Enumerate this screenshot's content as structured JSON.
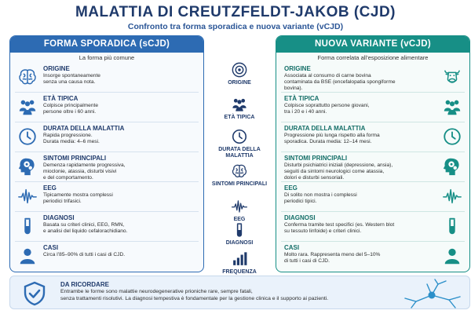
{
  "header": {
    "title": "MALATTIA DI CREUTZFELDT-JAKOB (CJD)",
    "subtitle": "Confronto tra forma sporadica e nuova variante (vCJD)"
  },
  "left": {
    "title": "FORMA SPORADICA (sCJD)",
    "subtitle": "La forma più comune",
    "rows": [
      {
        "label": "ORIGINE",
        "desc": "Insorge spontaneamente\nsenza una causa nota.",
        "icon": "brain-icon"
      },
      {
        "label": "ETÀ TIPICA",
        "desc": "Colpisce principalmente\npersone oltre i 60 anni.",
        "icon": "people-icon"
      },
      {
        "label": "DURATA DELLA MALATTIA",
        "desc": "Rapida progressione.\nDurata media: 4–6 mesi.",
        "icon": "clock-icon"
      },
      {
        "label": "SINTOMI PRINCIPALI",
        "desc": "Demenza rapidamente progressiva,\nmioclonie, atassia, disturbi visivi\ne del comportamento.",
        "icon": "head-gears-icon"
      },
      {
        "label": "EEG",
        "desc": "Tipicamente mostra complessi\nperiodici trifasici.",
        "icon": "eeg-wave-icon"
      },
      {
        "label": "DIAGNOSI",
        "desc": "Basata su criteri clinici, EEG, RMN,\ne analisi del liquido cefalorachidiano.",
        "icon": "test-tube-icon"
      },
      {
        "label": "CASI",
        "desc": "Circa l’85–90% di tutti i casi di CJD.",
        "icon": "person-icon"
      }
    ]
  },
  "right": {
    "title": "NUOVA VARIANTE (vCJD)",
    "subtitle": "Forma correlata all’esposizione alimentare",
    "rows": [
      {
        "label": "ORIGINE",
        "desc": "Associata al consumo di carne bovina\ncontaminata da BSE (encefalopatia spongiforme\nbovina).",
        "icon": "cow-icon"
      },
      {
        "label": "ETÀ TIPICA",
        "desc": "Colpisce soprattutto persone giovani,\ntra i 20 e i 40 anni.",
        "icon": "people-icon"
      },
      {
        "label": "DURATA DELLA MALATTIA",
        "desc": "Progressione più lunga rispetto alla forma\nsporadica. Durata media: 12–14 mesi.",
        "icon": "clock-icon"
      },
      {
        "label": "SINTOMI PRINCIPALI",
        "desc": "Disturbi psichiatrici iniziali (depressione, ansia),\nseguiti da sintomi neurologici come atassia,\ndolori e disturbi sensoriali.",
        "icon": "head-gears-icon"
      },
      {
        "label": "EEG",
        "desc": "Di solito non mostra i complessi\nperiodici tipici.",
        "icon": "eeg-wave-icon"
      },
      {
        "label": "DIAGNOSI",
        "desc": "Conferma tramite test specifici (es. Western blot\nsu tessuto linfoide) e criteri clinici.",
        "icon": "test-tube-icon"
      },
      {
        "label": "CASI",
        "desc": "Molto rara. Rappresenta meno del 5–10%\ndi tutti i casi di CJD.",
        "icon": "person-icon"
      }
    ]
  },
  "middle": [
    {
      "label": "ORIGINE",
      "icon": "target-icon"
    },
    {
      "label": "ETÀ TIPICA",
      "icon": "people-icon"
    },
    {
      "label": "DURATA DELLA MALATTIA",
      "icon": "clock-icon"
    },
    {
      "label": "SINTOMI PRINCIPALI",
      "icon": "brain-icon"
    },
    {
      "label": "EEG",
      "icon": "eeg-wave-icon"
    },
    {
      "label": "DIAGNOSI",
      "icon": "test-tube-icon"
    },
    {
      "label": "FREQUENZA",
      "icon": "bar-chart-icon"
    }
  ],
  "note": {
    "title": "DA RICORDARE",
    "text": "Entrambe le forme sono malattie neurodegenerative prioniche rare, sempre fatali,\nsenza trattamenti risolutivi. La diagnosi tempestiva è fondamentale per la gestione clinica e il supporto ai pazienti."
  },
  "colors": {
    "blue": "#2d6bb3",
    "teal": "#178f86",
    "navy": "#1f3a6b"
  }
}
